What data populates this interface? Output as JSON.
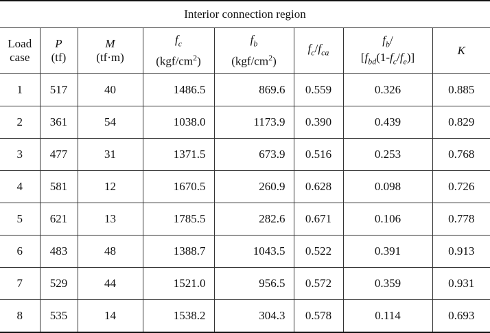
{
  "table": {
    "title": "Interior connection region",
    "header": [
      [
        "Load",
        "case"
      ],
      [
        "P",
        "(tf)"
      ],
      [
        "M",
        "(tf·m)"
      ],
      [
        "f",
        "c",
        "(kgf/cm",
        "2",
        ")"
      ],
      [
        "f",
        "b",
        "(kgf/cm",
        "2",
        ")"
      ],
      [
        "f",
        "c",
        "/",
        "f",
        "ca"
      ],
      [
        "f",
        "b",
        "/",
        "[",
        "f",
        "bd",
        "(1-",
        "f",
        "c",
        "/",
        "f",
        "e",
        ")]"
      ],
      [
        "K"
      ]
    ],
    "rows": [
      [
        "1",
        "517",
        "40",
        "1486.5",
        "869.6",
        "0.559",
        "0.326",
        "0.885"
      ],
      [
        "2",
        "361",
        "54",
        "1038.0",
        "1173.9",
        "0.390",
        "0.439",
        "0.829"
      ],
      [
        "3",
        "477",
        "31",
        "1371.5",
        "673.9",
        "0.516",
        "0.253",
        "0.768"
      ],
      [
        "4",
        "581",
        "12",
        "1670.5",
        "260.9",
        "0.628",
        "0.098",
        "0.726"
      ],
      [
        "5",
        "621",
        "13",
        "1785.5",
        "282.6",
        "0.671",
        "0.106",
        "0.778"
      ],
      [
        "6",
        "483",
        "48",
        "1388.7",
        "1043.5",
        "0.522",
        "0.391",
        "0.913"
      ],
      [
        "7",
        "529",
        "44",
        "1521.0",
        "956.5",
        "0.572",
        "0.359",
        "0.931"
      ],
      [
        "8",
        "535",
        "14",
        "1538.2",
        "304.3",
        "0.578",
        "0.114",
        "0.693"
      ]
    ]
  }
}
